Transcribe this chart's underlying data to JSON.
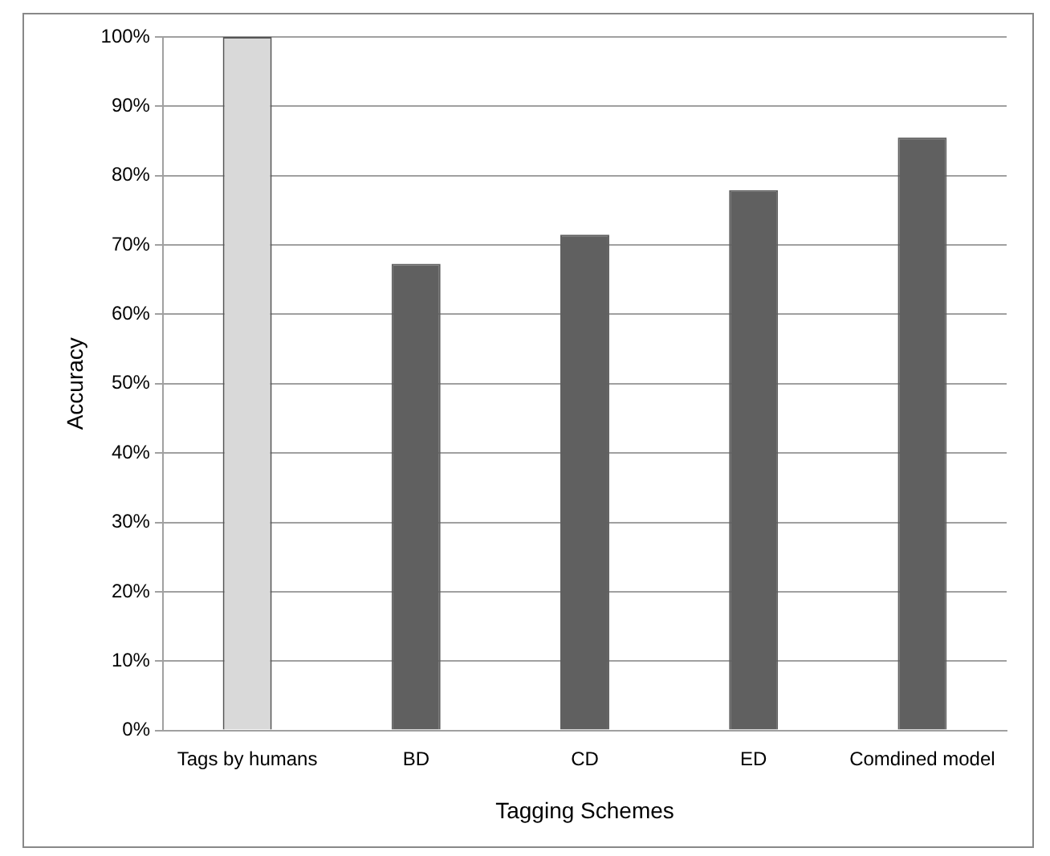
{
  "chart_data": {
    "type": "bar",
    "xlabel": "Tagging Schemes",
    "ylabel": "Accuracy",
    "categories": [
      "Tags by humans",
      "BD",
      "CD",
      "ED",
      "Comdined model"
    ],
    "values": [
      100,
      67.3,
      71.5,
      77.9,
      85.5
    ],
    "colors": [
      "#d9d9d9",
      "#606060",
      "#606060",
      "#606060",
      "#606060"
    ],
    "ylim": [
      0,
      100
    ],
    "yticks": [
      {
        "value": 0,
        "label": "0%"
      },
      {
        "value": 10,
        "label": "10%"
      },
      {
        "value": 20,
        "label": "20%"
      },
      {
        "value": 30,
        "label": "30%"
      },
      {
        "value": 40,
        "label": "40%"
      },
      {
        "value": 50,
        "label": "50%"
      },
      {
        "value": 60,
        "label": "60%"
      },
      {
        "value": 70,
        "label": "70%"
      },
      {
        "value": 80,
        "label": "80%"
      },
      {
        "value": 90,
        "label": "90%"
      },
      {
        "value": 100,
        "label": "100%"
      }
    ],
    "grid": "y"
  }
}
